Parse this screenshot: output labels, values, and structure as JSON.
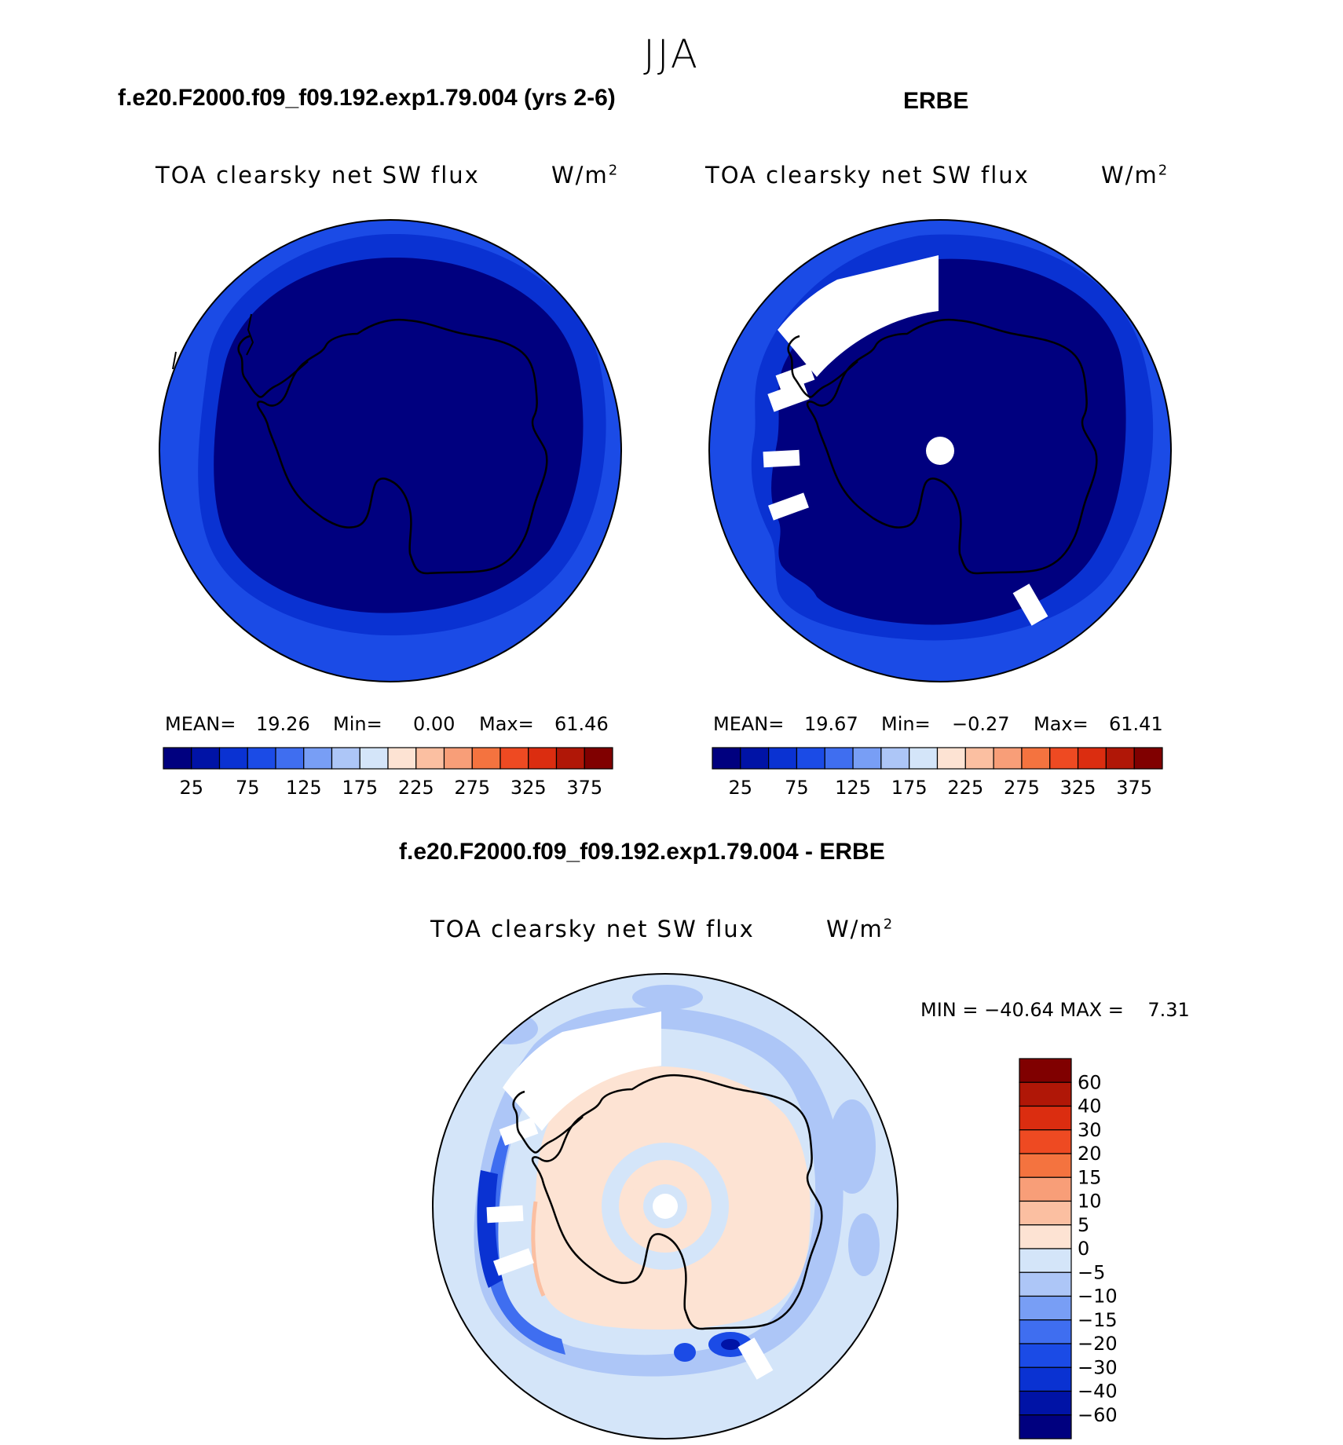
{
  "figure_title": "JJA",
  "colors": {
    "abs_levels": [
      "#00007f",
      "#0013a6",
      "#0a32d2",
      "#1b4be6",
      "#3f6ef0",
      "#789ef5",
      "#adc6f7",
      "#d4e5f9",
      "#fde3d3",
      "#fbbfa1",
      "#f89e78",
      "#f4733f",
      "#ee4a22",
      "#db2d10",
      "#b01707",
      "#800000"
    ],
    "diff_levels": [
      "#00007f",
      "#0013a6",
      "#0a32d2",
      "#1b4be6",
      "#3f6ef0",
      "#789ef5",
      "#adc6f7",
      "#d4e5f9",
      "#fde3d3",
      "#fbbfa1",
      "#f89e78",
      "#f4733f",
      "#ee4a22",
      "#db2d10",
      "#b01707",
      "#800000"
    ]
  },
  "panels": {
    "model": {
      "heading": "f.e20.F2000.f09_f09.192.exp1.79.004 (yrs 2-6)",
      "variable": "TOA clearsky net SW flux",
      "units": "W/m",
      "units_sup": "2",
      "mean_label": "MEAN=",
      "mean": "19.26",
      "min_label": "Min=",
      "min": "0.00",
      "max_label": "Max=",
      "max": "61.46",
      "ticks": [
        "25",
        "75",
        "125",
        "175",
        "225",
        "275",
        "325",
        "375"
      ]
    },
    "obs": {
      "heading": "ERBE",
      "variable": "TOA clearsky net SW flux",
      "units": "W/m",
      "units_sup": "2",
      "mean_label": "MEAN=",
      "mean": "19.67",
      "min_label": "Min=",
      "min": "−0.27",
      "max_label": "Max=",
      "max": "61.41",
      "ticks": [
        "25",
        "75",
        "125",
        "175",
        "225",
        "275",
        "325",
        "375"
      ]
    },
    "diff": {
      "heading": "f.e20.F2000.f09_f09.192.exp1.79.004 - ERBE",
      "variable": "TOA clearsky net SW flux",
      "units": "W/m",
      "units_sup": "2",
      "minmax": "MIN = −40.64 MAX =    7.31",
      "ticks": [
        "60",
        "40",
        "30",
        "20",
        "15",
        "10",
        "5",
        "0",
        "−5",
        "−10",
        "−15",
        "−20",
        "−30",
        "−40",
        "−60"
      ]
    }
  },
  "chart_data": [
    {
      "type": "heatmap",
      "title": "TOA clearsky net SW flux",
      "subtitle": "f.e20.F2000.f09_f09.192.exp1.79.004 (yrs 2-6)",
      "units": "W/m2",
      "projection": "south polar stereographic",
      "mean": 19.26,
      "min": 0.0,
      "max": 61.46,
      "contour_levels": [
        25,
        50,
        75,
        100,
        125,
        150,
        175,
        200,
        225,
        250,
        275,
        300,
        325,
        350,
        375
      ],
      "tick_labels": [
        "25",
        "75",
        "125",
        "175",
        "225",
        "275",
        "325",
        "375"
      ]
    },
    {
      "type": "heatmap",
      "title": "TOA clearsky net SW flux",
      "subtitle": "ERBE",
      "units": "W/m2",
      "projection": "south polar stereographic",
      "mean": 19.67,
      "min": -0.27,
      "max": 61.41,
      "contour_levels": [
        25,
        50,
        75,
        100,
        125,
        150,
        175,
        200,
        225,
        250,
        275,
        300,
        325,
        350,
        375
      ],
      "tick_labels": [
        "25",
        "75",
        "125",
        "175",
        "225",
        "275",
        "325",
        "375"
      ]
    },
    {
      "type": "heatmap",
      "title": "TOA clearsky net SW flux",
      "subtitle": "f.e20.F2000.f09_f09.192.exp1.79.004 - ERBE",
      "units": "W/m2",
      "projection": "south polar stereographic",
      "min": -40.64,
      "max": 7.31,
      "contour_levels": [
        -60,
        -40,
        -30,
        -20,
        -15,
        -10,
        -5,
        0,
        5,
        10,
        15,
        20,
        30,
        40,
        60
      ]
    }
  ]
}
